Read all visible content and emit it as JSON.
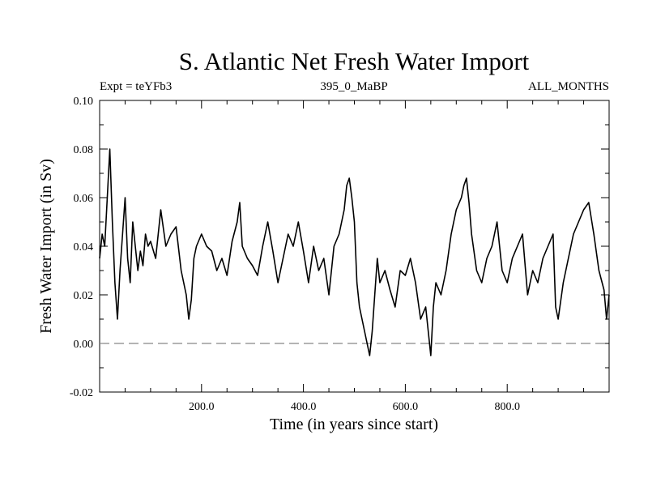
{
  "chart_data": {
    "type": "line",
    "title": "S. Atlantic Net Fresh Water Import",
    "subtitle_left": "Expt = teYFb3",
    "subtitle_center": "395_0_MaBP",
    "subtitle_right": "ALL_MONTHS",
    "xlabel": "Time (in years since start)",
    "ylabel": "Fresh Water Import (in Sv)",
    "xlim": [
      0,
      1000
    ],
    "ylim": [
      -0.02,
      0.1
    ],
    "xticks": [
      200,
      400,
      600,
      800
    ],
    "xtick_labels": [
      "200.0",
      "400.0",
      "600.0",
      "800.0"
    ],
    "yticks": [
      -0.02,
      0.0,
      0.02,
      0.04,
      0.06,
      0.08,
      0.1
    ],
    "ytick_labels": [
      "-0.02",
      "0.00",
      "0.02",
      "0.04",
      "0.06",
      "0.08",
      "0.10"
    ],
    "reference_line": {
      "y": 0.0,
      "style": "dashed",
      "color": "#888888"
    },
    "line_color": "#000000",
    "series": [
      {
        "name": "Net Fresh Water Import",
        "x": [
          0,
          5,
          10,
          15,
          20,
          25,
          30,
          35,
          40,
          45,
          50,
          55,
          60,
          65,
          70,
          75,
          80,
          85,
          90,
          95,
          100,
          110,
          120,
          130,
          140,
          150,
          160,
          170,
          175,
          180,
          185,
          190,
          200,
          210,
          220,
          230,
          240,
          250,
          260,
          270,
          275,
          280,
          290,
          300,
          310,
          320,
          330,
          340,
          350,
          360,
          370,
          380,
          390,
          400,
          410,
          420,
          430,
          440,
          450,
          460,
          470,
          480,
          485,
          490,
          495,
          500,
          505,
          510,
          515,
          520,
          525,
          530,
          535,
          540,
          545,
          550,
          560,
          570,
          580,
          590,
          600,
          610,
          620,
          630,
          640,
          645,
          650,
          655,
          660,
          670,
          680,
          690,
          700,
          710,
          715,
          720,
          725,
          730,
          740,
          750,
          760,
          770,
          780,
          790,
          800,
          810,
          820,
          830,
          840,
          850,
          860,
          870,
          880,
          890,
          895,
          900,
          910,
          920,
          930,
          940,
          950,
          960,
          970,
          980,
          990,
          995,
          1000
        ],
        "values": [
          0.035,
          0.045,
          0.04,
          0.06,
          0.08,
          0.05,
          0.025,
          0.01,
          0.03,
          0.045,
          0.06,
          0.035,
          0.025,
          0.05,
          0.04,
          0.03,
          0.038,
          0.032,
          0.045,
          0.04,
          0.042,
          0.035,
          0.055,
          0.04,
          0.045,
          0.048,
          0.03,
          0.02,
          0.01,
          0.018,
          0.035,
          0.04,
          0.045,
          0.04,
          0.038,
          0.03,
          0.035,
          0.028,
          0.042,
          0.05,
          0.058,
          0.04,
          0.035,
          0.032,
          0.028,
          0.04,
          0.05,
          0.038,
          0.025,
          0.035,
          0.045,
          0.04,
          0.05,
          0.038,
          0.025,
          0.04,
          0.03,
          0.035,
          0.02,
          0.04,
          0.045,
          0.055,
          0.065,
          0.068,
          0.06,
          0.05,
          0.025,
          0.015,
          0.01,
          0.005,
          0.0,
          -0.005,
          0.005,
          0.02,
          0.035,
          0.025,
          0.03,
          0.022,
          0.015,
          0.03,
          0.028,
          0.035,
          0.025,
          0.01,
          0.015,
          0.005,
          -0.005,
          0.015,
          0.025,
          0.02,
          0.03,
          0.045,
          0.055,
          0.06,
          0.065,
          0.068,
          0.058,
          0.045,
          0.03,
          0.025,
          0.035,
          0.04,
          0.05,
          0.03,
          0.025,
          0.035,
          0.04,
          0.045,
          0.02,
          0.03,
          0.025,
          0.035,
          0.04,
          0.045,
          0.015,
          0.01,
          0.025,
          0.035,
          0.045,
          0.05,
          0.055,
          0.058,
          0.045,
          0.03,
          0.022,
          0.01,
          0.02
        ]
      }
    ]
  }
}
